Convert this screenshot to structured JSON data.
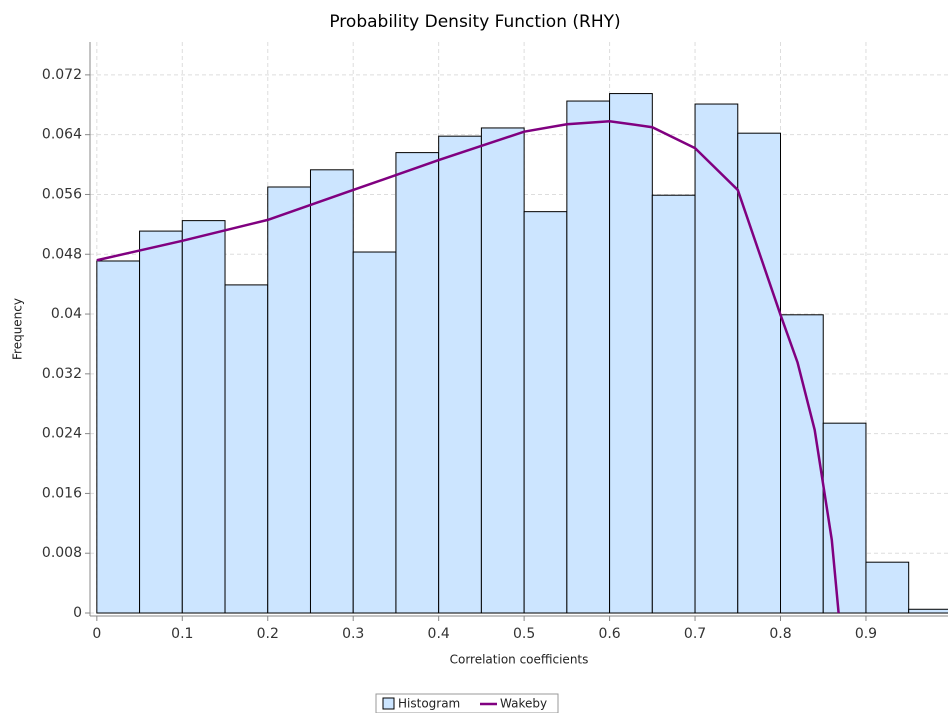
{
  "chart_data": {
    "type": "histogram",
    "title": "Probability Density Function (RHY)",
    "xlabel": "Correlation coefficients",
    "ylabel": "Frequency",
    "name": "Histogram",
    "color": "#cce5ff",
    "bins": [
      0,
      0.05,
      0.1,
      0.15,
      0.2,
      0.25,
      0.3,
      0.35,
      0.4,
      0.45,
      0.5,
      0.55,
      0.6,
      0.65,
      0.7,
      0.75,
      0.8,
      0.85,
      0.9,
      0.95,
      1.0
    ],
    "values": [
      0.0471,
      0.0511,
      0.0525,
      0.0439,
      0.057,
      0.0593,
      0.0483,
      0.0616,
      0.0638,
      0.0649,
      0.0537,
      0.0685,
      0.0695,
      0.0559,
      0.0681,
      0.0642,
      0.0399,
      0.0254,
      0.0068,
      0.0005
    ],
    "line": {
      "name": "Wakeby",
      "color": "#800080",
      "x": [
        0,
        0.1,
        0.2,
        0.3,
        0.4,
        0.5,
        0.55,
        0.6,
        0.65,
        0.7,
        0.75,
        0.8,
        0.82,
        0.84,
        0.86,
        0.868
      ],
      "values": [
        0.0472,
        0.0498,
        0.0526,
        0.0566,
        0.0606,
        0.0644,
        0.0654,
        0.0658,
        0.065,
        0.0622,
        0.0566,
        0.0399,
        0.0335,
        0.0245,
        0.0098,
        0
      ]
    },
    "xlim": [
      -0.008,
      0.996
    ],
    "ylim": [
      -0.0004,
      0.0764
    ],
    "xticks": [
      0,
      0.1,
      0.2,
      0.3,
      0.4,
      0.5,
      0.6,
      0.7,
      0.8,
      0.9
    ],
    "yticks": [
      0,
      0.008,
      0.016,
      0.024,
      0.032,
      0.04,
      0.048,
      0.056,
      0.064,
      0.072
    ],
    "grid": true
  }
}
